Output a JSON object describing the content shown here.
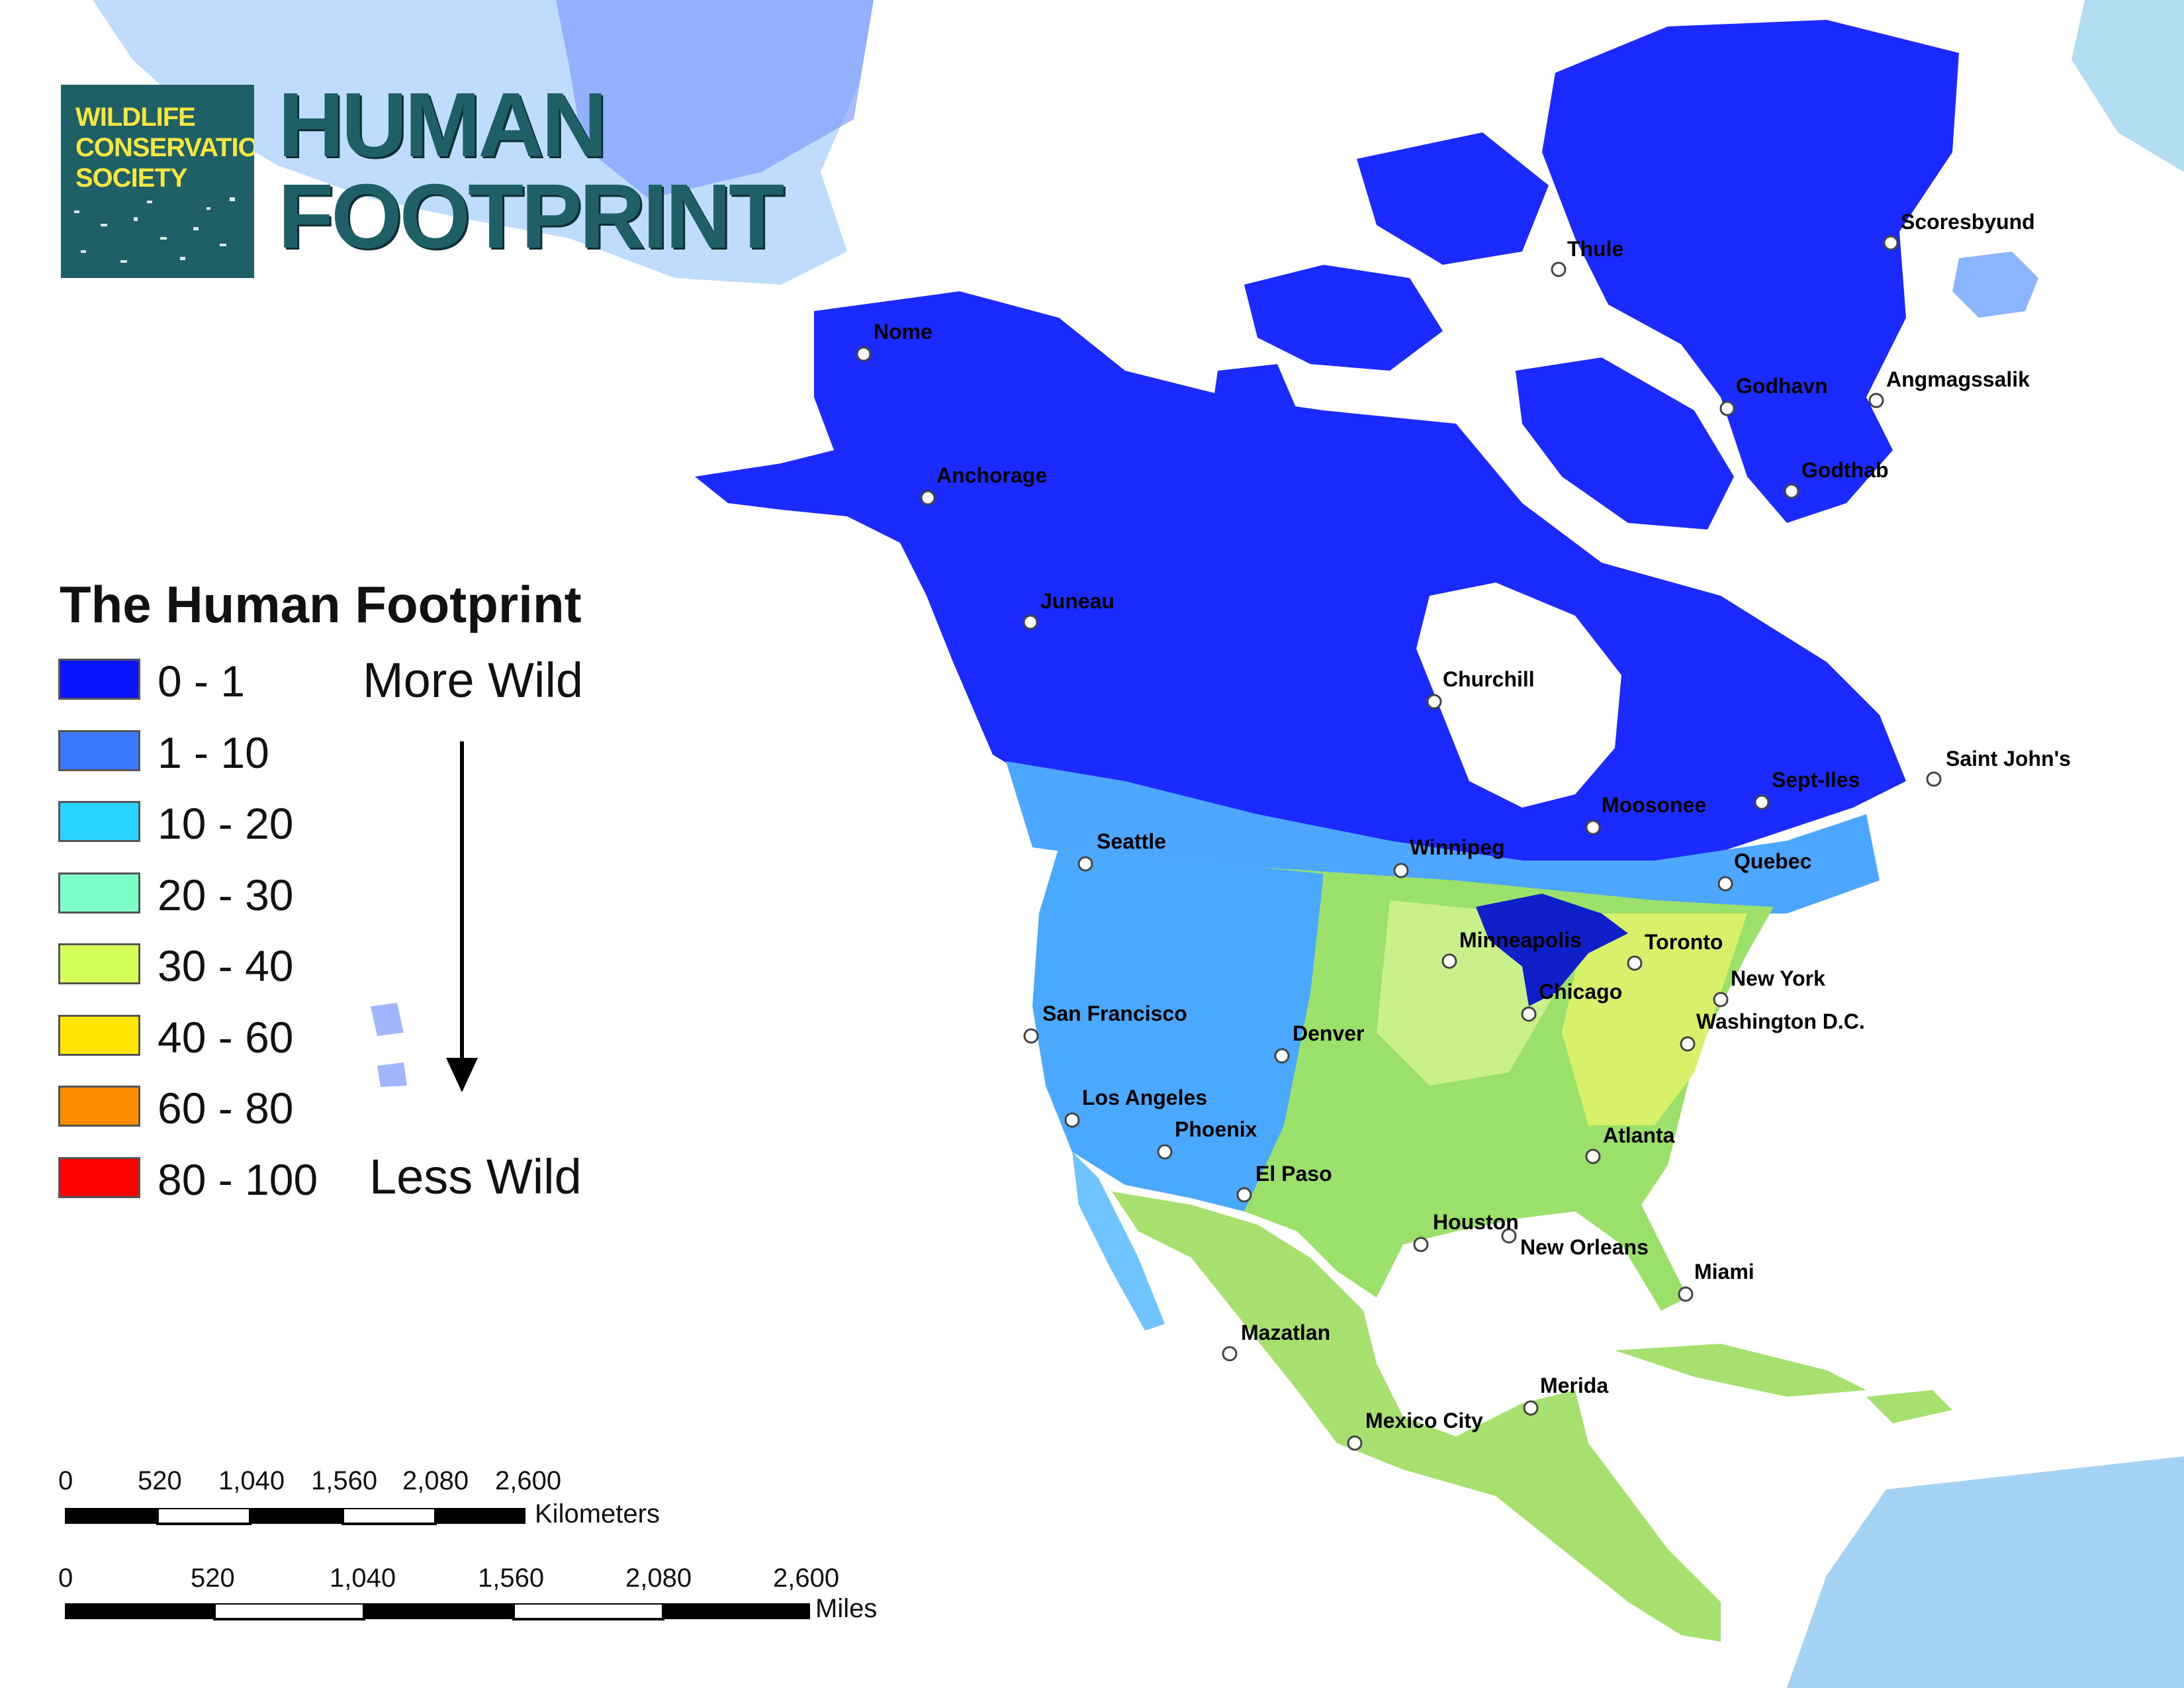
{
  "header": {
    "logo_lines": [
      "WILDLIFE",
      "CONSERVATION",
      "SOCIETY"
    ],
    "title_lines": [
      "HUMAN",
      "FOOTPRINT"
    ]
  },
  "legend": {
    "title": "The Human Footprint",
    "classes": [
      {
        "label": "0 - 1",
        "color": "#0a14ff"
      },
      {
        "label": "1 - 10",
        "color": "#3a78ff"
      },
      {
        "label": "10 - 20",
        "color": "#2ad2ff"
      },
      {
        "label": "20 - 30",
        "color": "#7dffc8"
      },
      {
        "label": "30 - 40",
        "color": "#d6ff5a"
      },
      {
        "label": "40 - 60",
        "color": "#ffe600"
      },
      {
        "label": "60 - 80",
        "color": "#ff8c00"
      },
      {
        "label": "80 - 100",
        "color": "#ff0000"
      }
    ],
    "more_wild": "More Wild",
    "less_wild": "Less Wild"
  },
  "cities": [
    {
      "id": "nome",
      "name": "Nome"
    },
    {
      "id": "anchorage",
      "name": "Anchorage"
    },
    {
      "id": "juneau",
      "name": "Juneau"
    },
    {
      "id": "thule",
      "name": "Thule"
    },
    {
      "id": "scoresbyund",
      "name": "Scoresbyund"
    },
    {
      "id": "godhavn",
      "name": "Godhavn"
    },
    {
      "id": "angmagssalik",
      "name": "Angmagssalik"
    },
    {
      "id": "godthab",
      "name": "Godthab"
    },
    {
      "id": "churchill",
      "name": "Churchill"
    },
    {
      "id": "saint-johns",
      "name": "Saint John's"
    },
    {
      "id": "sept-iles",
      "name": "Sept-Iles"
    },
    {
      "id": "moosonee",
      "name": "Moosonee"
    },
    {
      "id": "seattle",
      "name": "Seattle"
    },
    {
      "id": "winnipeg",
      "name": "Winnipeg"
    },
    {
      "id": "quebec",
      "name": "Quebec"
    },
    {
      "id": "minneapolis",
      "name": "Minneapolis"
    },
    {
      "id": "toronto",
      "name": "Toronto"
    },
    {
      "id": "new-york",
      "name": "New York"
    },
    {
      "id": "chicago",
      "name": "Chicago"
    },
    {
      "id": "washington",
      "name": "Washington D.C."
    },
    {
      "id": "san-francisco",
      "name": "San Francisco"
    },
    {
      "id": "denver",
      "name": "Denver"
    },
    {
      "id": "los-angeles",
      "name": "Los Angeles"
    },
    {
      "id": "phoenix",
      "name": "Phoenix"
    },
    {
      "id": "atlanta",
      "name": "Atlanta"
    },
    {
      "id": "el-paso",
      "name": "El Paso"
    },
    {
      "id": "houston",
      "name": "Houston"
    },
    {
      "id": "new-orleans",
      "name": "New Orleans"
    },
    {
      "id": "miami",
      "name": "Miami"
    },
    {
      "id": "mazatlan",
      "name": "Mazatlan"
    },
    {
      "id": "merida",
      "name": "Merida"
    },
    {
      "id": "mexico-city",
      "name": "Mexico City"
    }
  ],
  "scale_bars": [
    {
      "unit": "Kilometers",
      "ticks": [
        "0",
        "520",
        "1,040",
        "1,560",
        "2,080",
        "2,600"
      ]
    },
    {
      "unit": "Miles",
      "ticks": [
        "0",
        "520",
        "1,040",
        "1,560",
        "2,080",
        "2,600"
      ]
    }
  ]
}
